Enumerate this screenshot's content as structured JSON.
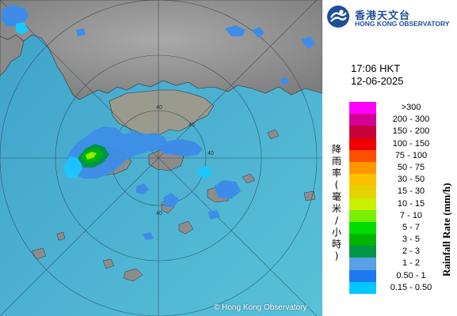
{
  "header": {
    "org_cn": "香港天文台",
    "org_en": "HONG KONG OBSERVATORY",
    "time": "17:06 HKT",
    "date": "12-06-2025"
  },
  "map": {
    "copyright": "© Hong Kong Observatory",
    "range_labels": [
      "40",
      "40",
      "40",
      "40",
      "40"
    ]
  },
  "legend": {
    "title_en": "Rainfall Rate (mm/h)",
    "title_cn": [
      "降",
      "雨",
      "率",
      "(",
      "毫",
      "米",
      "/",
      "小",
      "時",
      ")"
    ],
    "bins": [
      {
        "label": ">300",
        "color": "#ff00ff"
      },
      {
        "label": "200 - 300",
        "color": "#d40096"
      },
      {
        "label": "150 - 200",
        "color": "#c8003c"
      },
      {
        "label": "100 - 150",
        "color": "#f00000"
      },
      {
        "label": "75 - 100",
        "color": "#ff5000"
      },
      {
        "label": "50 - 75",
        "color": "#ff9600"
      },
      {
        "label": "30 - 50",
        "color": "#ffbe00"
      },
      {
        "label": "15 - 30",
        "color": "#e6d200"
      },
      {
        "label": "10 - 15",
        "color": "#c8f000"
      },
      {
        "label": "7 - 10",
        "color": "#78f000"
      },
      {
        "label": "5 - 7",
        "color": "#00dc00"
      },
      {
        "label": "3 - 5",
        "color": "#00b400"
      },
      {
        "label": "2 - 3",
        "color": "#009646"
      },
      {
        "label": "1 - 2",
        "color": "#5aa0e6"
      },
      {
        "label": "0.50 - 1",
        "color": "#1e78f0"
      },
      {
        "label": "0.15 - 0.50",
        "color": "#00c8ff"
      }
    ]
  }
}
